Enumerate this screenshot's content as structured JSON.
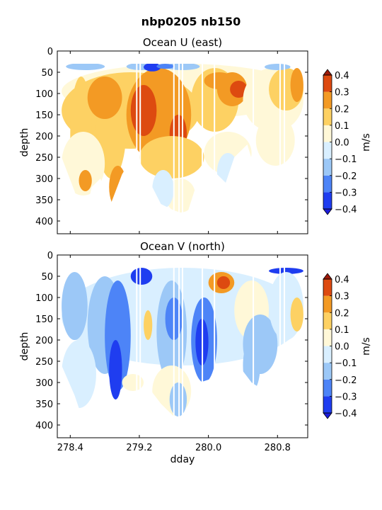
{
  "figure": {
    "suptitle": "nbp0205 nb150",
    "xlabel": "dday",
    "colorbar_label": "m/s"
  },
  "chart_data": [
    {
      "type": "heatmap",
      "title": "Ocean U (east)",
      "ylabel": "depth",
      "xlim": [
        278.25,
        281.15
      ],
      "ylim": [
        430,
        0
      ],
      "yticks": [
        0,
        50,
        100,
        150,
        200,
        250,
        300,
        350,
        400
      ],
      "xticks": [
        278.4,
        279.2,
        280.0,
        280.8
      ],
      "xtick_labels": [],
      "colorbar": {
        "levels": [
          -0.4,
          -0.3,
          -0.2,
          -0.1,
          0.0,
          0.1,
          0.2,
          0.3,
          0.4
        ],
        "tick_labels": [
          "−0.4",
          "−0.3",
          "−0.2",
          "−0.1",
          "0.0",
          "0.1",
          "0.2",
          "0.3",
          "0.4"
        ],
        "colors": [
          "#1f3df0",
          "#4d84f7",
          "#9cc8f7",
          "#d9efff",
          "#fff8d8",
          "#fdd163",
          "#f39a24",
          "#dd4a10"
        ],
        "extend_low_color": "#1c1cd8",
        "extend_high_color": "#9e1a0a"
      },
      "background": "#ffffff",
      "data_top_depth": 30,
      "blobs": [
        {
          "x0": 278.3,
          "x1": 281.1,
          "z0": 30,
          "z1": 160,
          "value": 0.05
        },
        {
          "x0": 278.3,
          "x1": 279.9,
          "z0": 50,
          "z1": 230,
          "value": 0.15
        },
        {
          "x0": 278.4,
          "x1": 278.65,
          "z0": 60,
          "z1": 330,
          "value": 0.15
        },
        {
          "x0": 278.7,
          "x1": 279.05,
          "z0": 60,
          "z1": 300,
          "value": 0.15
        },
        {
          "x0": 278.6,
          "x1": 279.0,
          "z0": 60,
          "z1": 160,
          "value": 0.25
        },
        {
          "x0": 279.05,
          "x1": 279.8,
          "z0": 40,
          "z1": 260,
          "value": 0.25
        },
        {
          "x0": 279.1,
          "x1": 279.4,
          "z0": 80,
          "z1": 200,
          "value": 0.35
        },
        {
          "x0": 279.55,
          "x1": 279.75,
          "z0": 150,
          "z1": 240,
          "value": 0.35
        },
        {
          "x0": 279.2,
          "x1": 279.95,
          "z0": 200,
          "z1": 300,
          "value": 0.1
        },
        {
          "x0": 279.5,
          "x1": 279.85,
          "z0": 300,
          "z1": 380,
          "value": 0.05
        },
        {
          "x0": 279.8,
          "x1": 280.35,
          "z0": 40,
          "z1": 190,
          "value": 0.15
        },
        {
          "x0": 279.95,
          "x1": 280.3,
          "z0": 50,
          "z1": 90,
          "value": 0.25
        },
        {
          "x0": 280.1,
          "x1": 280.45,
          "z0": 50,
          "z1": 130,
          "value": 0.25
        },
        {
          "x0": 280.25,
          "x1": 280.45,
          "z0": 70,
          "z1": 110,
          "value": 0.35
        },
        {
          "x0": 280.4,
          "x1": 281.1,
          "z0": 40,
          "z1": 190,
          "value": 0.05
        },
        {
          "x0": 280.7,
          "x1": 281.1,
          "z0": 40,
          "z1": 140,
          "value": 0.15
        },
        {
          "x0": 280.95,
          "x1": 281.1,
          "z0": 40,
          "z1": 120,
          "value": 0.25
        },
        {
          "x0": 278.3,
          "x1": 278.8,
          "z0": 190,
          "z1": 340,
          "value": 0.05
        },
        {
          "x0": 279.95,
          "x1": 280.5,
          "z0": 190,
          "z1": 290,
          "value": 0.05
        },
        {
          "x0": 280.55,
          "x1": 281.0,
          "z0": 150,
          "z1": 270,
          "value": 0.05
        },
        {
          "x0": 279.35,
          "x1": 279.6,
          "z0": 280,
          "z1": 370,
          "value": -0.05
        },
        {
          "x0": 280.1,
          "x1": 280.35,
          "z0": 240,
          "z1": 330,
          "value": -0.05
        },
        {
          "x0": 278.35,
          "x1": 278.8,
          "z0": 28,
          "z1": 45,
          "value": -0.15
        },
        {
          "x0": 279.05,
          "x1": 279.4,
          "z0": 28,
          "z1": 45,
          "value": -0.15
        },
        {
          "x0": 279.5,
          "x1": 279.9,
          "z0": 28,
          "z1": 45,
          "value": -0.15
        },
        {
          "x0": 279.25,
          "x1": 279.45,
          "z0": 28,
          "z1": 48,
          "value": -0.35
        },
        {
          "x0": 279.4,
          "x1": 279.6,
          "z0": 30,
          "z1": 42,
          "value": -0.25
        },
        {
          "x0": 280.65,
          "x1": 280.95,
          "z0": 30,
          "z1": 45,
          "value": -0.15
        },
        {
          "x0": 278.85,
          "x1": 279.05,
          "z0": 270,
          "z1": 370,
          "value": 0.25
        },
        {
          "x0": 278.5,
          "x1": 278.65,
          "z0": 280,
          "z1": 330,
          "value": 0.25
        }
      ],
      "depth_limits": [
        {
          "x": 278.3,
          "depth": 250
        },
        {
          "x": 278.45,
          "depth": 330
        },
        {
          "x": 278.55,
          "depth": 400
        },
        {
          "x": 278.65,
          "depth": 320
        },
        {
          "x": 278.75,
          "depth": 300
        },
        {
          "x": 278.85,
          "depth": 370
        },
        {
          "x": 279.0,
          "depth": 290
        },
        {
          "x": 279.15,
          "depth": 240
        },
        {
          "x": 279.3,
          "depth": 300
        },
        {
          "x": 279.45,
          "depth": 360
        },
        {
          "x": 279.6,
          "depth": 375
        },
        {
          "x": 279.75,
          "depth": 385
        },
        {
          "x": 279.9,
          "depth": 290
        },
        {
          "x": 280.05,
          "depth": 280
        },
        {
          "x": 280.2,
          "depth": 310
        },
        {
          "x": 280.3,
          "depth": 250
        },
        {
          "x": 280.45,
          "depth": 220
        },
        {
          "x": 280.6,
          "depth": 320
        },
        {
          "x": 280.75,
          "depth": 280
        },
        {
          "x": 280.9,
          "depth": 310
        },
        {
          "x": 281.0,
          "depth": 230
        },
        {
          "x": 281.1,
          "depth": 200
        }
      ],
      "gaps": [
        279.17,
        279.21,
        279.6,
        279.66,
        279.7,
        279.93,
        280.07,
        280.52,
        280.83,
        280.88
      ]
    },
    {
      "type": "heatmap",
      "title": "Ocean V (north)",
      "ylabel": "depth",
      "xlim": [
        278.25,
        281.15
      ],
      "ylim": [
        430,
        0
      ],
      "yticks": [
        0,
        50,
        100,
        150,
        200,
        250,
        300,
        350,
        400
      ],
      "xticks": [
        278.4,
        279.2,
        280.0,
        280.8
      ],
      "xtick_labels": [
        "278.4",
        "279.2",
        "280.0",
        "280.8"
      ],
      "colorbar": {
        "levels": [
          -0.4,
          -0.3,
          -0.2,
          -0.1,
          0.0,
          0.1,
          0.2,
          0.3,
          0.4
        ],
        "tick_labels": [
          "−0.4",
          "−0.3",
          "−0.2",
          "−0.1",
          "0.0",
          "0.1",
          "0.2",
          "0.3",
          "0.4"
        ],
        "colors": [
          "#1f3df0",
          "#4d84f7",
          "#9cc8f7",
          "#d9efff",
          "#fff8d8",
          "#fdd163",
          "#f39a24",
          "#dd4a10"
        ],
        "extend_low_color": "#1c1cd8",
        "extend_high_color": "#9e1a0a"
      },
      "background": "#ffffff",
      "data_top_depth": 30,
      "blobs": [
        {
          "x0": 278.3,
          "x1": 281.1,
          "z0": 30,
          "z1": 260,
          "value": -0.05
        },
        {
          "x0": 278.3,
          "x1": 278.6,
          "z0": 40,
          "z1": 200,
          "value": -0.15
        },
        {
          "x0": 278.6,
          "x1": 279.0,
          "z0": 50,
          "z1": 280,
          "value": -0.15
        },
        {
          "x0": 278.8,
          "x1": 279.1,
          "z0": 60,
          "z1": 320,
          "value": -0.25
        },
        {
          "x0": 278.85,
          "x1": 279.0,
          "z0": 200,
          "z1": 340,
          "value": -0.35
        },
        {
          "x0": 279.1,
          "x1": 279.35,
          "z0": 30,
          "z1": 70,
          "value": -0.35
        },
        {
          "x0": 279.25,
          "x1": 279.35,
          "z0": 130,
          "z1": 200,
          "value": 0.15
        },
        {
          "x0": 279.4,
          "x1": 279.75,
          "z0": 60,
          "z1": 300,
          "value": -0.15
        },
        {
          "x0": 279.5,
          "x1": 279.7,
          "z0": 100,
          "z1": 200,
          "value": -0.25
        },
        {
          "x0": 279.8,
          "x1": 280.1,
          "z0": 100,
          "z1": 300,
          "value": -0.25
        },
        {
          "x0": 279.85,
          "x1": 280.0,
          "z0": 150,
          "z1": 260,
          "value": -0.35
        },
        {
          "x0": 280.0,
          "x1": 280.3,
          "z0": 40,
          "z1": 90,
          "value": 0.25
        },
        {
          "x0": 280.1,
          "x1": 280.25,
          "z0": 50,
          "z1": 80,
          "value": 0.35
        },
        {
          "x0": 280.3,
          "x1": 280.7,
          "z0": 60,
          "z1": 200,
          "value": 0.05
        },
        {
          "x0": 280.4,
          "x1": 280.8,
          "z0": 140,
          "z1": 280,
          "value": -0.15
        },
        {
          "x0": 280.7,
          "x1": 281.1,
          "z0": 30,
          "z1": 45,
          "value": -0.35
        },
        {
          "x0": 280.7,
          "x1": 281.1,
          "z0": 40,
          "z1": 200,
          "value": -0.05
        },
        {
          "x0": 280.95,
          "x1": 281.1,
          "z0": 100,
          "z1": 180,
          "value": 0.15
        },
        {
          "x0": 278.3,
          "x1": 278.7,
          "z0": 200,
          "z1": 360,
          "value": -0.05
        },
        {
          "x0": 279.35,
          "x1": 279.8,
          "z0": 260,
          "z1": 380,
          "value": 0.05
        },
        {
          "x0": 279.55,
          "x1": 279.75,
          "z0": 300,
          "z1": 380,
          "value": -0.15
        },
        {
          "x0": 279.0,
          "x1": 279.25,
          "z0": 280,
          "z1": 320,
          "value": 0.05
        },
        {
          "x0": 280.4,
          "x1": 280.6,
          "z0": 200,
          "z1": 320,
          "value": -0.15
        }
      ],
      "depth_limits": [
        {
          "x": 278.3,
          "depth": 260
        },
        {
          "x": 278.45,
          "depth": 330
        },
        {
          "x": 278.55,
          "depth": 390
        },
        {
          "x": 278.7,
          "depth": 320
        },
        {
          "x": 278.85,
          "depth": 340
        },
        {
          "x": 279.0,
          "depth": 350
        },
        {
          "x": 279.15,
          "depth": 320
        },
        {
          "x": 279.3,
          "depth": 310
        },
        {
          "x": 279.45,
          "depth": 350
        },
        {
          "x": 279.6,
          "depth": 380
        },
        {
          "x": 279.75,
          "depth": 385
        },
        {
          "x": 279.9,
          "depth": 300
        },
        {
          "x": 280.05,
          "depth": 290
        },
        {
          "x": 280.2,
          "depth": 310
        },
        {
          "x": 280.35,
          "depth": 260
        },
        {
          "x": 280.5,
          "depth": 300
        },
        {
          "x": 280.65,
          "depth": 320
        },
        {
          "x": 280.8,
          "depth": 280
        },
        {
          "x": 280.95,
          "depth": 240
        },
        {
          "x": 281.1,
          "depth": 200
        }
      ],
      "gaps": [
        279.17,
        279.21,
        279.6,
        279.66,
        279.7,
        279.93,
        280.07,
        280.52,
        280.83,
        280.88
      ]
    }
  ]
}
